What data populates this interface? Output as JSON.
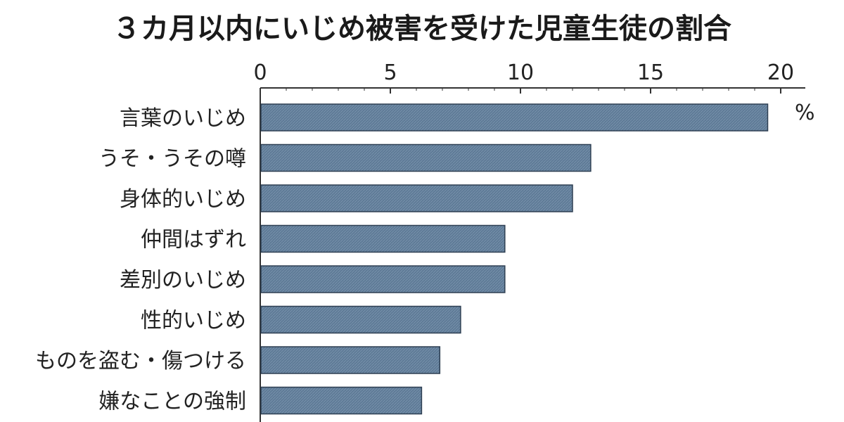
{
  "chart_data": {
    "type": "bar",
    "orientation": "horizontal",
    "title": "３カ月以内にいじめ被害を受けた児童生徒の割合",
    "unit": "%",
    "categories": [
      "言葉のいじめ",
      "うそ・うその噂",
      "身体的いじめ",
      "仲間はずれ",
      "差別のいじめ",
      "性的いじめ",
      "ものを盗む・傷つける",
      "嫌なことの強制"
    ],
    "values": [
      19.5,
      12.7,
      12.0,
      9.4,
      9.4,
      7.7,
      6.9,
      6.2
    ],
    "xlim": [
      0,
      21
    ],
    "xticks": [
      0,
      5,
      10,
      15,
      20
    ],
    "axis_position": "top",
    "grid": false,
    "legend": "none",
    "colors": {
      "bar": "#5e7a96",
      "bar_edge": "#2e3f52",
      "axis": "#333333"
    }
  }
}
